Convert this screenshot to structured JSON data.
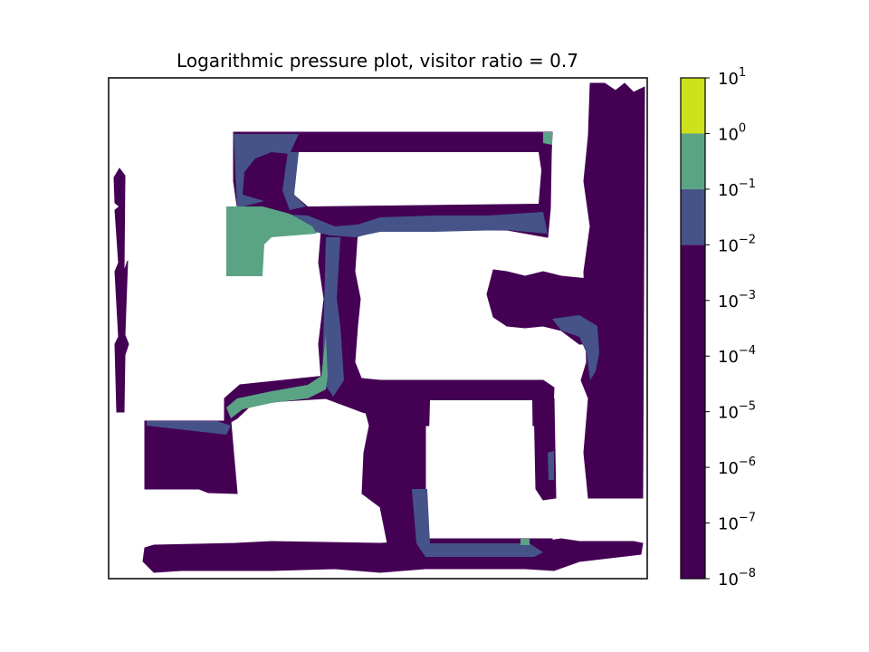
{
  "chart_data": {
    "type": "heatmap",
    "title": "Logarithmic pressure plot, visitor ratio = 0.7",
    "xlabel": "",
    "ylabel": "",
    "scale": "log",
    "axes_ticks_visible": false,
    "grid": false,
    "colorbar": {
      "placement": "right",
      "exponents": [
        1,
        0,
        -1,
        -2,
        -3,
        -4,
        -5,
        -6,
        -7,
        -8
      ],
      "bands": [
        {
          "from_exp": 0,
          "to_exp": 1,
          "color": "#cde11d"
        },
        {
          "from_exp": -1,
          "to_exp": 0,
          "color": "#5ba385"
        },
        {
          "from_exp": -2,
          "to_exp": -1,
          "color": "#455388"
        },
        {
          "from_exp": -8,
          "to_exp": -2,
          "color": "#440154"
        }
      ],
      "tick_base": "10"
    },
    "regions": [
      {
        "name": "left-thin-corridor",
        "level_exp": -8
      },
      {
        "name": "top-rectangular-loop",
        "level_exp": -8
      },
      {
        "name": "top-left-room",
        "level_exp": -1
      },
      {
        "name": "central-vertical-corridor",
        "level_exp": -2
      },
      {
        "name": "middle-horizontal-corridor",
        "level_exp": -1
      },
      {
        "name": "bottom-left-room",
        "level_exp": -8
      },
      {
        "name": "central-square-loop",
        "level_exp": -8
      },
      {
        "name": "right-vertical-corridor",
        "level_exp": -8
      },
      {
        "name": "right-side-branch",
        "level_exp": -8
      },
      {
        "name": "bottom-horizontal-corridor",
        "level_exp": -8
      }
    ]
  }
}
